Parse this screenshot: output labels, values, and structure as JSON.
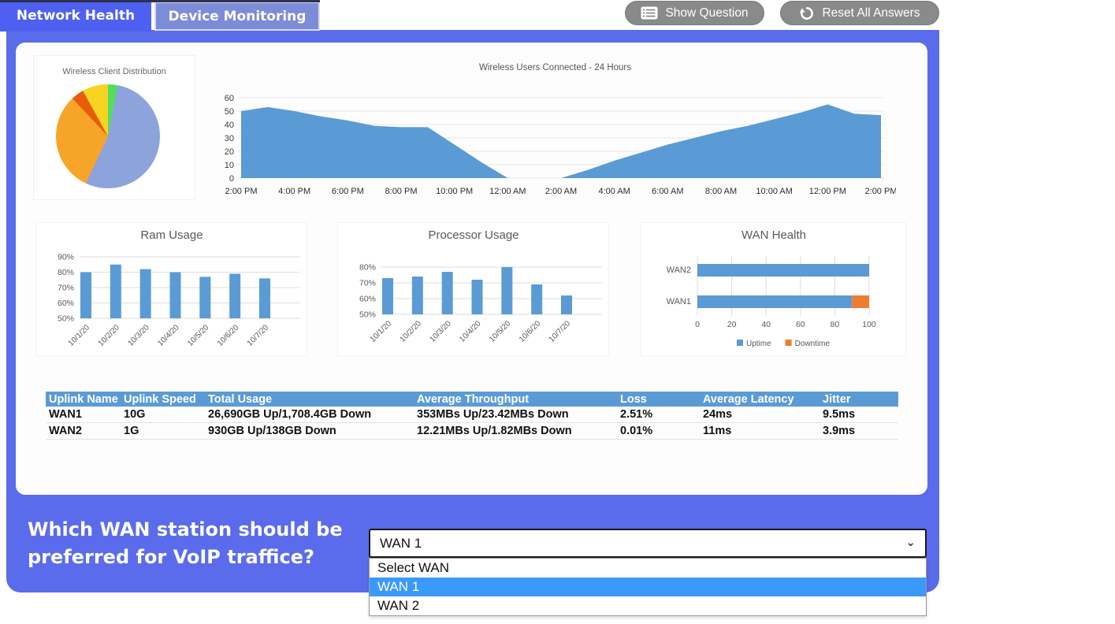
{
  "tabs": [
    {
      "label": "Network Health",
      "active": false
    },
    {
      "label": "Device Monitoring",
      "active": true
    }
  ],
  "toolbar": {
    "show_question_label": "Show Question",
    "reset_label": "Reset All Answers"
  },
  "question": {
    "line1": "Which WAN station should be",
    "line2": "preferred for VoIP traffice?"
  },
  "dropdown": {
    "selected": "WAN 1",
    "options": [
      "Select WAN",
      "WAN 1",
      "WAN 2"
    ],
    "highlighted": "WAN 1"
  },
  "table": {
    "headers": [
      "Uplink Name",
      "Uplink Speed",
      "Total Usage",
      "Average Throughput",
      "Loss",
      "Average Latency",
      "Jitter"
    ],
    "rows": [
      [
        "WAN1",
        "10G",
        "26,690GB Up/1,708.4GB Down",
        "353MBs Up/23.42MBs Down",
        "2.51%",
        "24ms",
        "9.5ms"
      ],
      [
        "WAN2",
        "1G",
        "930GB Up/138GB Down",
        "12.21MBs Up/1.82MBs Down",
        "0.01%",
        "11ms",
        "3.9ms"
      ]
    ]
  },
  "colors": {
    "body_blue": "#5a6bec",
    "tab_blue": "#4e60f0",
    "tab_device": "#7d8cd8",
    "button_grey": "#8a8a8a",
    "chart_blue": "#5b9bd5",
    "chart_orange": "#ed7d31",
    "table_header": "#5b9bd5",
    "option_highlight": "#3b99fc"
  },
  "chart_data": [
    {
      "id": "pie",
      "type": "pie",
      "title": "Wireless Client Distribution",
      "slices": [
        {
          "value": 3,
          "color": "#53de5d"
        },
        {
          "value": 54,
          "color": "#8da3dc"
        },
        {
          "value": 31,
          "color": "#f7a528"
        },
        {
          "value": 4,
          "color": "#e85c0c"
        },
        {
          "value": 8,
          "color": "#f7d421"
        }
      ]
    },
    {
      "id": "area",
      "type": "area",
      "title": "Wireless Users Connected - 24 Hours",
      "color": "#5b9bd5",
      "ylim": [
        0,
        60
      ],
      "yticks": [
        0,
        10,
        20,
        30,
        40,
        50,
        60
      ],
      "x_labels": [
        "2:00 PM",
        "4:00 PM",
        "6:00 PM",
        "8:00 PM",
        "10:00 PM",
        "12:00 AM",
        "2:00 AM",
        "4:00 AM",
        "6:00 AM",
        "8:00 AM",
        "10:00 AM",
        "12:00 PM",
        "2:00 PM"
      ],
      "values": [
        50,
        53,
        50,
        46,
        43,
        39,
        38,
        38,
        25,
        12,
        0,
        0,
        0,
        6,
        13,
        19,
        25,
        30,
        35,
        39,
        44,
        49,
        55,
        48,
        47
      ]
    },
    {
      "id": "ram",
      "type": "bar",
      "title": "Ram Usage",
      "color": "#5b9bd5",
      "categories": [
        "10/1/20",
        "10/2/20",
        "10/3/20",
        "10/4/20",
        "10/5/20",
        "10/6/20",
        "10/7/20"
      ],
      "values": [
        80,
        85,
        82,
        80,
        77,
        79,
        76
      ],
      "ymin": 50,
      "yticks": [
        50,
        60,
        70,
        80,
        90
      ],
      "unit": "%"
    },
    {
      "id": "cpu",
      "type": "bar",
      "title": "Processor Usage",
      "color": "#5b9bd5",
      "categories": [
        "10/1/20",
        "10/2/20",
        "10/3/20",
        "10/4/20",
        "10/5/20",
        "10/6/20",
        "10/7/20"
      ],
      "values": [
        73,
        74,
        77,
        72,
        80,
        69,
        62
      ],
      "ymin": 50,
      "yticks": [
        50,
        60,
        70,
        80
      ],
      "unit": "%"
    },
    {
      "id": "wan",
      "type": "stacked_hbar",
      "title": "WAN Health",
      "categories": [
        "WAN2",
        "WAN1"
      ],
      "series": [
        {
          "name": "Uptime",
          "color": "#5b9bd5",
          "values": [
            100,
            90
          ]
        },
        {
          "name": "Downtime",
          "color": "#ed7d31",
          "values": [
            0,
            10
          ]
        }
      ],
      "xticks": [
        0,
        20,
        40,
        60,
        80,
        100
      ]
    }
  ]
}
